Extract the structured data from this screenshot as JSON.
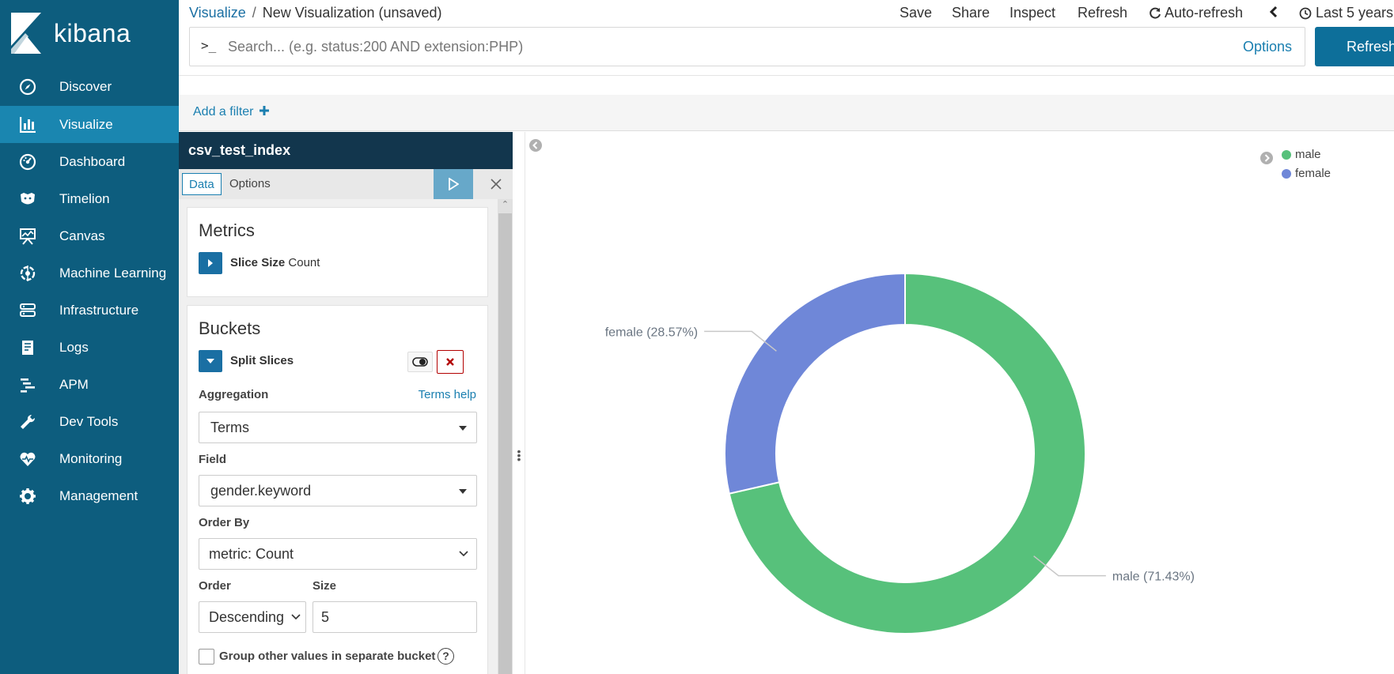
{
  "app": {
    "name": "kibana"
  },
  "sidebar": {
    "items": [
      {
        "label": "Discover",
        "icon": "compass-icon"
      },
      {
        "label": "Visualize",
        "icon": "bar-chart-icon",
        "active": true
      },
      {
        "label": "Dashboard",
        "icon": "dashboard-icon"
      },
      {
        "label": "Timelion",
        "icon": "timelion-icon"
      },
      {
        "label": "Canvas",
        "icon": "canvas-icon"
      },
      {
        "label": "Machine Learning",
        "icon": "machine-learning-icon"
      },
      {
        "label": "Infrastructure",
        "icon": "infrastructure-icon"
      },
      {
        "label": "Logs",
        "icon": "logs-icon"
      },
      {
        "label": "APM",
        "icon": "apm-icon"
      },
      {
        "label": "Dev Tools",
        "icon": "wrench-icon"
      },
      {
        "label": "Monitoring",
        "icon": "heartbeat-icon"
      },
      {
        "label": "Management",
        "icon": "gear-icon"
      }
    ]
  },
  "header": {
    "breadcrumb_link": "Visualize",
    "breadcrumb_sep": "/",
    "breadcrumb_current": "New Visualization (unsaved)",
    "actions": {
      "save": "Save",
      "share": "Share",
      "inspect": "Inspect",
      "refresh": "Refresh",
      "auto_refresh": "Auto-refresh",
      "time_range": "Last 5 years"
    }
  },
  "search": {
    "prompt": ">_",
    "placeholder": "Search... (e.g. status:200 AND extension:PHP)",
    "value": "",
    "options_label": "Options",
    "refresh_button": "Refresh"
  },
  "filters": {
    "add_filter_label": "Add a filter"
  },
  "editor": {
    "index_name": "csv_test_index",
    "tabs": {
      "data": "Data",
      "options": "Options"
    },
    "metrics": {
      "title": "Metrics",
      "agg_name": "Slice Size",
      "agg_type": "Count"
    },
    "buckets": {
      "title": "Buckets",
      "agg_name": "Split Slices",
      "aggregation_label": "Aggregation",
      "help_link": "Terms help",
      "aggregation_value": "Terms",
      "field_label": "Field",
      "field_value": "gender.keyword",
      "order_by_label": "Order By",
      "order_by_value": "metric: Count",
      "order_label": "Order",
      "order_value": "Descending",
      "size_label": "Size",
      "size_value": "5",
      "group_other_label": "Group other values in separate bucket"
    }
  },
  "chart_data": {
    "type": "pie",
    "donut": true,
    "categories": [
      "male",
      "female"
    ],
    "values": [
      71.43,
      28.57
    ],
    "labels": [
      "male (71.43%)",
      "female (28.57%)"
    ],
    "colors": [
      "#57c17b",
      "#6f87d8"
    ],
    "legend": {
      "position": "top-right",
      "entries": [
        "male",
        "female"
      ]
    }
  }
}
